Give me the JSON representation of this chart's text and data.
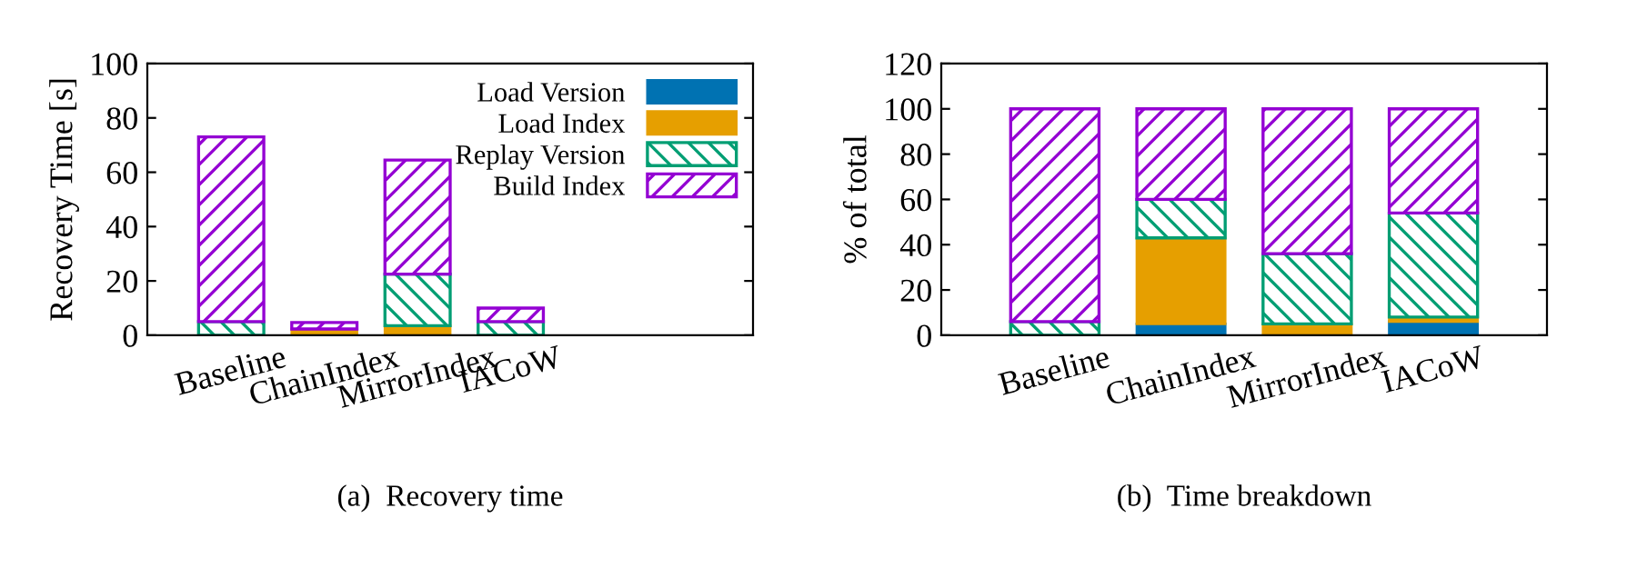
{
  "chart_data": [
    {
      "type": "bar",
      "title": "(a)  Recovery time",
      "ylabel": "Recovery Time [s]",
      "stacked": true,
      "legend": "top right",
      "grid": false,
      "categories": [
        "Baseline",
        "ChainIndex",
        "MirrorIndex",
        "IACoW"
      ],
      "ylim": [
        0,
        100
      ],
      "yticks": [
        0,
        20,
        40,
        60,
        80,
        100
      ],
      "series": [
        {
          "name": "Load Version",
          "color": "#0072b2",
          "values": [
            0,
            null,
            0,
            null
          ]
        },
        {
          "name": "Load Index",
          "color": "#e69f00",
          "values": [
            0,
            2.3,
            3.5,
            null
          ]
        },
        {
          "name": "Replay Version",
          "color": "#009e73",
          "values": [
            5,
            null,
            19,
            5
          ]
        },
        {
          "name": "Build Index",
          "color": "#9400d3",
          "values": [
            68,
            2.4,
            42,
            5
          ]
        }
      ]
    },
    {
      "type": "bar",
      "title": "(b)  Time breakdown",
      "ylabel": "% of total",
      "stacked": true,
      "grid": false,
      "categories": [
        "Baseline",
        "ChainIndex",
        "MirrorIndex",
        "IACoW"
      ],
      "ylim": [
        0,
        120
      ],
      "yticks": [
        0,
        20,
        40,
        60,
        80,
        100,
        120
      ],
      "series": [
        {
          "color": "#0072b2",
          "values": [
            0,
            5,
            0,
            6
          ]
        },
        {
          "color": "#e69f00",
          "values": [
            0,
            38,
            5,
            2
          ]
        },
        {
          "color": "#009e73",
          "values": [
            6,
            17,
            31,
            46
          ]
        },
        {
          "color": "#9400d3",
          "values": [
            94,
            40,
            64,
            46
          ]
        }
      ]
    }
  ]
}
